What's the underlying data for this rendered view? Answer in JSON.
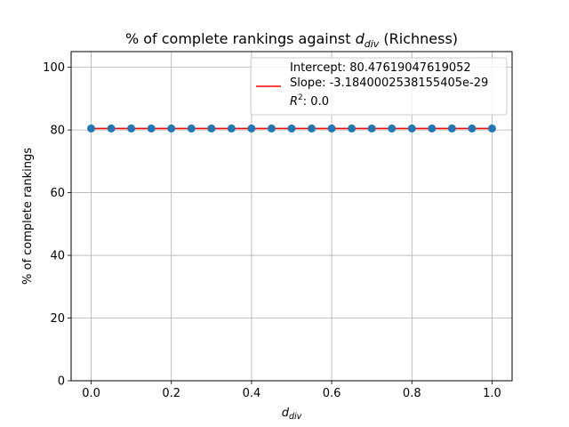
{
  "chart_data": {
    "type": "scatter",
    "title": {
      "prefix": "% of complete rankings against ",
      "var_main": "d",
      "var_sub": "div",
      "suffix": " (Richness)"
    },
    "xlabel": {
      "main": "d",
      "sub": "div"
    },
    "ylabel": "% of complete rankings",
    "xlim": [
      -0.05,
      1.05
    ],
    "ylim": [
      0,
      105
    ],
    "xticks": [
      0.0,
      0.2,
      0.4,
      0.6,
      0.8,
      1.0
    ],
    "xtick_labels": [
      "0.0",
      "0.2",
      "0.4",
      "0.6",
      "0.8",
      "1.0"
    ],
    "yticks": [
      0,
      20,
      40,
      60,
      80,
      100
    ],
    "ytick_labels": [
      "0",
      "20",
      "40",
      "60",
      "80",
      "100"
    ],
    "grid": true,
    "points": {
      "color": "#1f77b4",
      "x": [
        0.0,
        0.05,
        0.1,
        0.15,
        0.2,
        0.25,
        0.3,
        0.35,
        0.4,
        0.45,
        0.5,
        0.55,
        0.6,
        0.65,
        0.7,
        0.75,
        0.8,
        0.85,
        0.9,
        0.95,
        1.0
      ],
      "y": [
        80.47619047619052,
        80.47619047619052,
        80.47619047619052,
        80.47619047619052,
        80.47619047619052,
        80.47619047619052,
        80.47619047619052,
        80.47619047619052,
        80.47619047619052,
        80.47619047619052,
        80.47619047619052,
        80.47619047619052,
        80.47619047619052,
        80.47619047619052,
        80.47619047619052,
        80.47619047619052,
        80.47619047619052,
        80.47619047619052,
        80.47619047619052,
        80.47619047619052,
        80.47619047619052
      ]
    },
    "fit_line": {
      "color": "#ff0000",
      "intercept": 80.47619047619052,
      "slope": -3.1840002538155405e-29,
      "x_range": [
        0.0,
        1.0
      ]
    },
    "legend": {
      "position": "top-right",
      "lines": [
        "Intercept: 80.47619047619052",
        "Slope: -3.1840002538155405e-29"
      ],
      "r2_label": {
        "main": "R",
        "sup": "2",
        "rest": ": 0.0"
      }
    }
  }
}
